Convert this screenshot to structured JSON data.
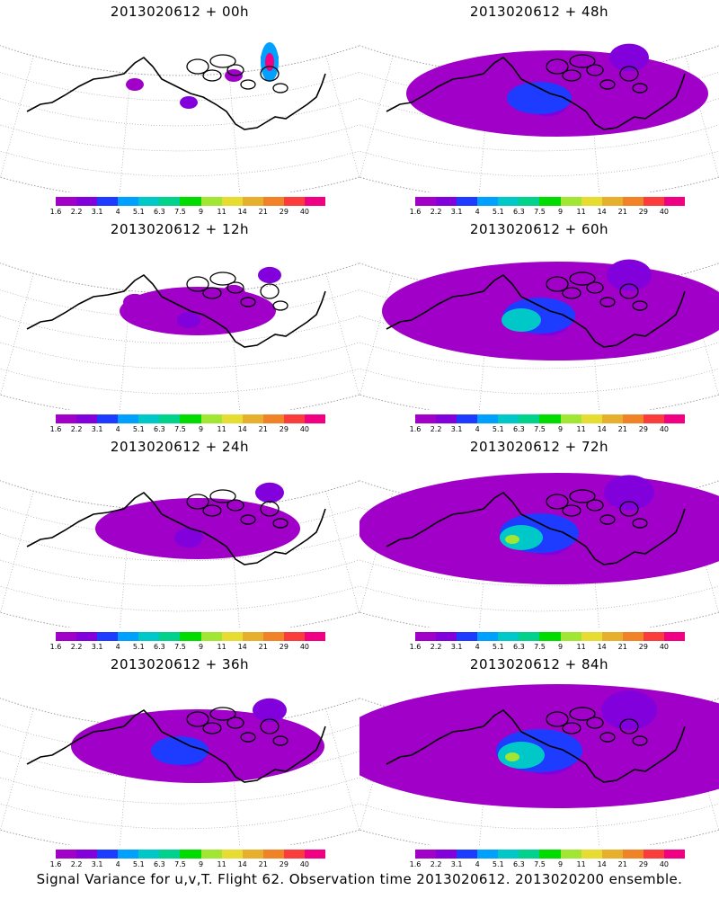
{
  "footer": "Signal Variance for u,v,T. Flight 62. Observation time 2013020612. 2013020200 ensemble.",
  "colorbar": {
    "colors": [
      "#a000c8",
      "#8200dc",
      "#1e3cff",
      "#00a0ff",
      "#00c8c8",
      "#00d28c",
      "#00dc00",
      "#a0e632",
      "#e6dc32",
      "#e6af2d",
      "#f08228",
      "#fa3c3c",
      "#f00082"
    ],
    "labels": [
      "1.6",
      "2.2",
      "3.1",
      "4",
      "5.1",
      "6.3",
      "7.5",
      "9",
      "11",
      "14",
      "21",
      "29",
      "40"
    ]
  },
  "panels": [
    {
      "title": "2013020612 + 00h",
      "intensity": 0
    },
    {
      "title": "2013020612 + 48h",
      "intensity": 4
    },
    {
      "title": "2013020612 + 12h",
      "intensity": 1
    },
    {
      "title": "2013020612 + 60h",
      "intensity": 5
    },
    {
      "title": "2013020612 + 24h",
      "intensity": 2
    },
    {
      "title": "2013020612 + 72h",
      "intensity": 6
    },
    {
      "title": "2013020612 + 36h",
      "intensity": 3
    },
    {
      "title": "2013020612 + 84h",
      "intensity": 7
    }
  ]
}
